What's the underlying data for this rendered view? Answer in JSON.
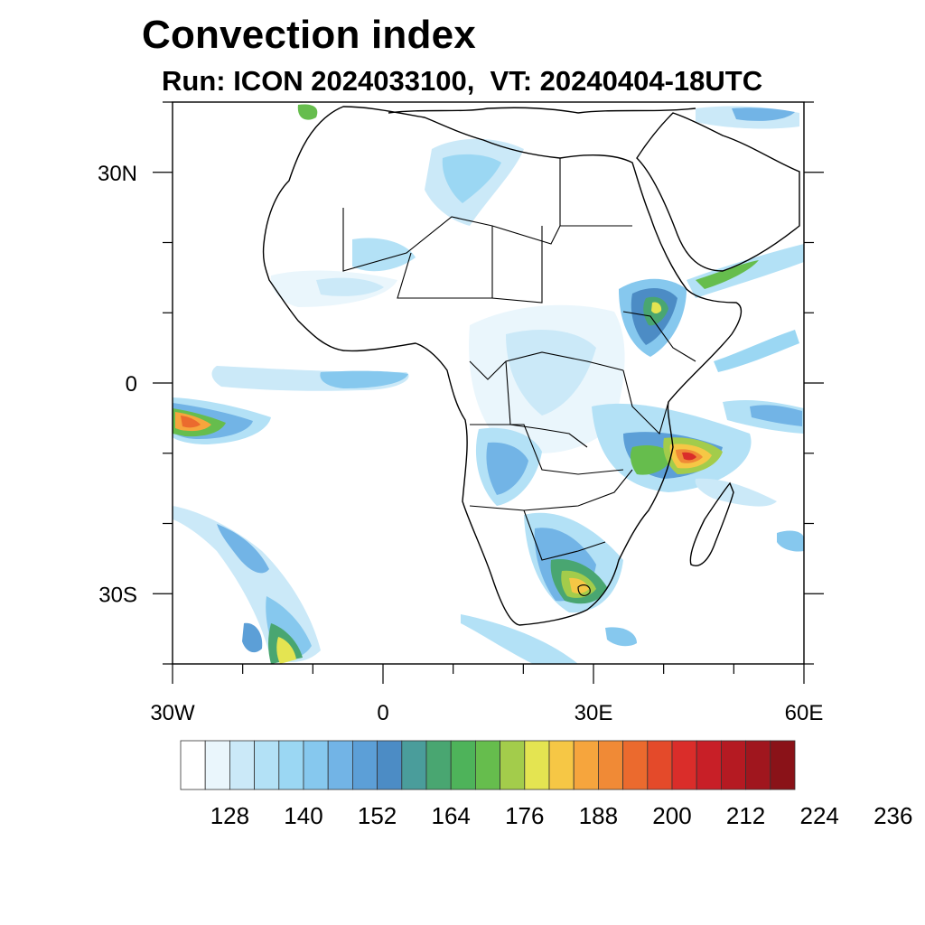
{
  "title": "Convection index",
  "subtitle": "Run: ICON 2024033100,  VT: 20240404-18UTC",
  "map": {
    "region": "Africa",
    "lon_range": [
      -30,
      60
    ],
    "lat_range": [
      -40,
      40
    ],
    "lon_ticks": [
      {
        "value": -30,
        "label": "30W"
      },
      {
        "value": 0,
        "label": "0"
      },
      {
        "value": 30,
        "label": "30E"
      },
      {
        "value": 60,
        "label": "60E"
      }
    ],
    "lat_ticks": [
      {
        "value": 30,
        "label": "30N"
      },
      {
        "value": 0,
        "label": "0"
      },
      {
        "value": -30,
        "label": "30S"
      }
    ]
  },
  "colorbar": {
    "colors": [
      "#ffffff",
      "#eaf6fc",
      "#cbe9f8",
      "#b3e1f6",
      "#9bd7f3",
      "#86c8ee",
      "#72b4e6",
      "#5c9fd7",
      "#4c8cc5",
      "#4a9d9b",
      "#49a671",
      "#4eb35a",
      "#66bd4d",
      "#a3cc4b",
      "#e4e451",
      "#f6c745",
      "#f6a53d",
      "#f08a36",
      "#eb6a2e",
      "#e44a2a",
      "#da2d2a",
      "#c81f27",
      "#b51a22",
      "#a0161e",
      "#8a1218"
    ],
    "labels": [
      "128",
      "140",
      "152",
      "164",
      "176",
      "188",
      "200",
      "212",
      "224",
      "236"
    ]
  }
}
